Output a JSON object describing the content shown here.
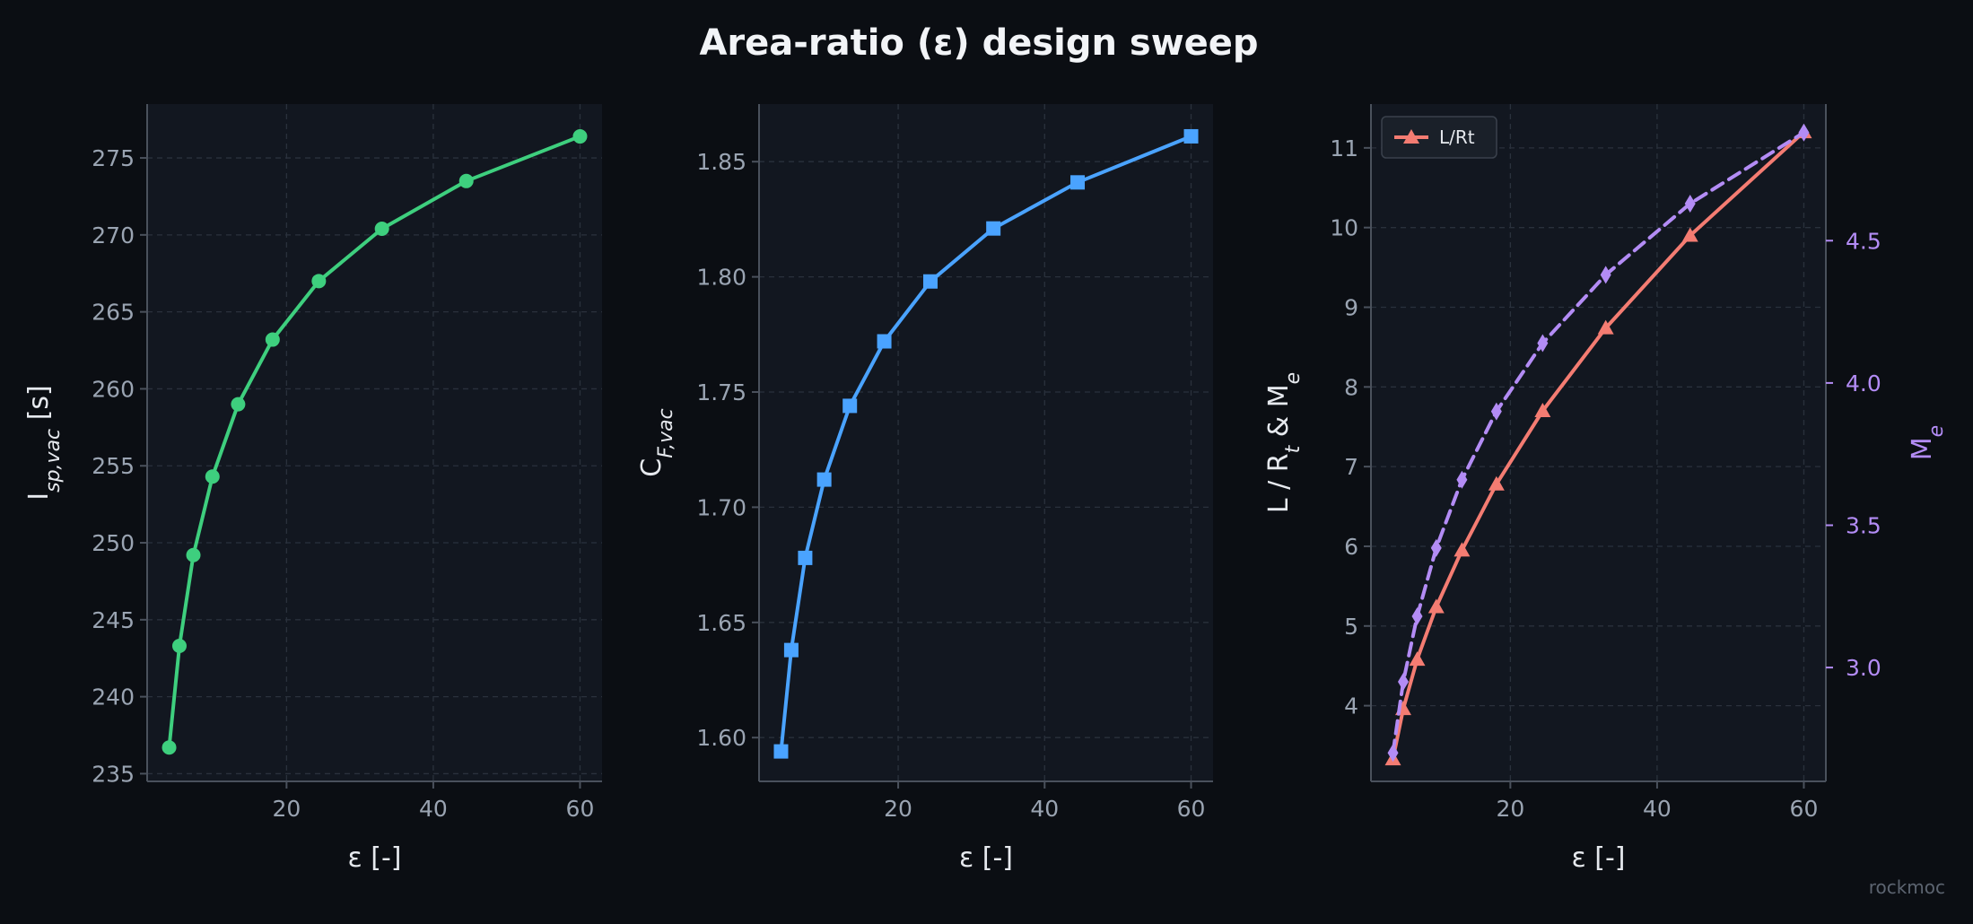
{
  "figure_title": "Area-ratio (ε) design sweep",
  "watermark": "rockmoc",
  "colors": {
    "background": "#0b0e13",
    "axes_bg": "#121720",
    "grid": "#2a313c",
    "spine": "#4a515c",
    "isp": "#3ecf7e",
    "cf": "#4aa3ff",
    "lrt": "#f47c72",
    "me": "#b38cf5"
  },
  "chart_data": [
    {
      "type": "line",
      "xlabel": "ε [-]",
      "ylabel_parts": [
        [
          "I",
          ""
        ],
        [
          "sp,vac",
          "sub"
        ],
        [
          " [s]",
          ""
        ]
      ],
      "xlim": [
        1,
        63
      ],
      "ylim": [
        234.5,
        278.5
      ],
      "xticks": [
        20,
        40,
        60
      ],
      "yticks": [
        235,
        240,
        245,
        250,
        255,
        260,
        265,
        270,
        275
      ],
      "grid": true,
      "series": [
        {
          "marker": "circle",
          "color": "#3ecf7e",
          "x": [
            4,
            5.4,
            7.3,
            9.9,
            13.4,
            18.1,
            24.4,
            33.0,
            44.5,
            60.0
          ],
          "y": [
            236.7,
            243.3,
            249.2,
            254.3,
            259.0,
            263.2,
            267.0,
            270.4,
            273.5,
            276.4
          ]
        }
      ]
    },
    {
      "type": "line",
      "xlabel": "ε [-]",
      "ylabel_parts": [
        [
          "C",
          ""
        ],
        [
          "F,vac",
          "sub"
        ]
      ],
      "xlim": [
        1,
        63
      ],
      "ylim": [
        1.581,
        1.875
      ],
      "xticks": [
        20,
        40,
        60
      ],
      "yticks": [
        1.6,
        1.65,
        1.7,
        1.75,
        1.8,
        1.85
      ],
      "ytick_labels": [
        "1.60",
        "1.65",
        "1.70",
        "1.75",
        "1.80",
        "1.85"
      ],
      "grid": true,
      "series": [
        {
          "marker": "square",
          "color": "#4aa3ff",
          "x": [
            4,
            5.4,
            7.3,
            9.9,
            13.4,
            18.1,
            24.4,
            33.0,
            44.5,
            60.0
          ],
          "y": [
            1.594,
            1.638,
            1.678,
            1.712,
            1.744,
            1.772,
            1.798,
            1.821,
            1.841,
            1.861
          ]
        }
      ]
    },
    {
      "type": "line",
      "xlabel": "ε [-]",
      "ylabel_parts": [
        [
          "L / R",
          ""
        ],
        [
          "t",
          "sub"
        ],
        [
          "  &  M",
          ""
        ],
        [
          "e",
          "sub"
        ]
      ],
      "ylabel_right_parts": [
        [
          "M",
          ""
        ],
        [
          "e",
          "sub"
        ]
      ],
      "xlim": [
        1,
        63
      ],
      "ylim": [
        3.05,
        11.55
      ],
      "ylim_right": [
        2.6,
        4.98
      ],
      "xticks": [
        20,
        40,
        60
      ],
      "yticks": [
        4,
        5,
        6,
        7,
        8,
        9,
        10,
        11
      ],
      "yticks_right": [
        3.0,
        3.5,
        4.0,
        4.5
      ],
      "ytick_labels_right": [
        "3.0",
        "3.5",
        "4.0",
        "4.5"
      ],
      "grid": true,
      "legend": {
        "position": "top-left",
        "entries": [
          "L/Rt"
        ]
      },
      "series": [
        {
          "name": "L/Rt",
          "marker": "triangle",
          "color": "#f47c72",
          "axis": "left",
          "x": [
            4,
            5.4,
            7.3,
            9.9,
            13.4,
            18.1,
            24.4,
            33.0,
            44.5,
            60.0
          ],
          "y": [
            3.33,
            3.96,
            4.58,
            5.24,
            5.95,
            6.78,
            7.7,
            8.74,
            9.9,
            11.2
          ]
        },
        {
          "marker": "diamond",
          "color": "#b38cf5",
          "axis": "right",
          "dashed": true,
          "x": [
            4,
            5.4,
            7.3,
            9.9,
            13.4,
            18.1,
            24.4,
            33.0,
            44.5,
            60.0
          ],
          "y": [
            2.7,
            2.95,
            3.18,
            3.42,
            3.66,
            3.9,
            4.14,
            4.38,
            4.63,
            4.88
          ]
        }
      ]
    }
  ]
}
